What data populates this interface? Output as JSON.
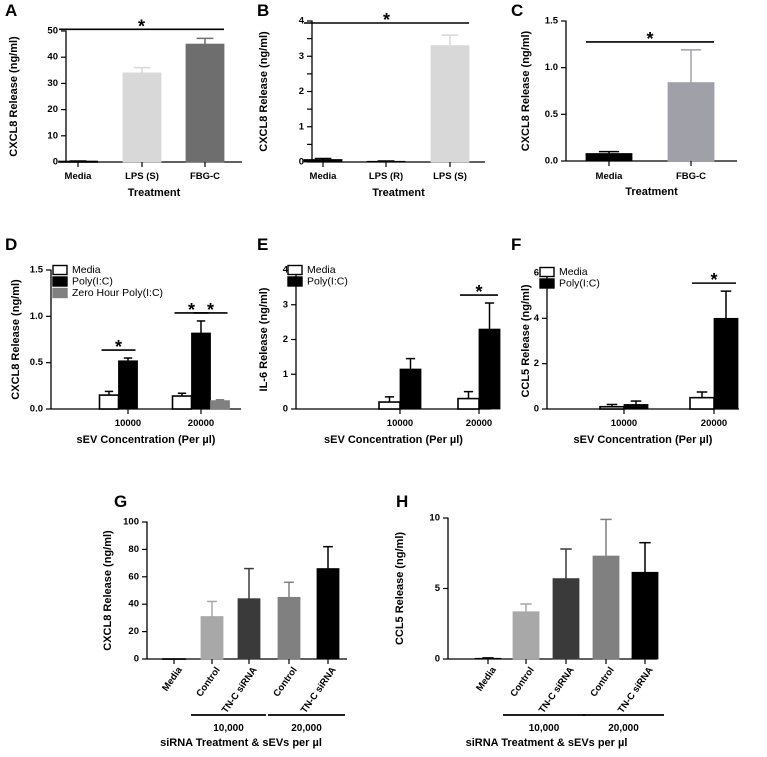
{
  "panels": [
    {
      "letter": "A",
      "chart_data": {
        "type": "bar",
        "categories": [
          "Media",
          "LPS (S)",
          "FBG-C"
        ],
        "values": [
          0.2,
          34,
          45
        ],
        "errors": [
          0.2,
          2,
          2.2
        ],
        "colors": [
          "#ffffff",
          "#d8d8d8",
          "#6e6e6e"
        ],
        "xlabel": "Treatment",
        "ylabel": "CXCL8 Release (ng/ml)",
        "ylim": [
          0,
          50
        ],
        "yticks": [
          0,
          10,
          20,
          30,
          40,
          50
        ],
        "ytick_labels": [
          "0",
          "10",
          "20",
          "30",
          "40",
          "50"
        ],
        "significance": [
          {
            "from": 0,
            "to": 2,
            "label": "*"
          }
        ]
      }
    },
    {
      "letter": "B",
      "chart_data": {
        "type": "bar",
        "categories": [
          "Media",
          "LPS (R)",
          "LPS (S)"
        ],
        "values": [
          0.07,
          0.02,
          3.3
        ],
        "errors": [
          0.03,
          0.01,
          0.3
        ],
        "colors": [
          "#000000",
          "#000000",
          "#d8d8d8"
        ],
        "xlabel": "Treatment",
        "ylabel": "CXCL8 Release (ng/ml)",
        "ylim": [
          0,
          4
        ],
        "yticks": [
          0,
          0.5,
          1,
          1.5,
          2,
          2.5,
          3,
          3.5,
          4
        ],
        "ytick_labels": [
          "0",
          "",
          "1",
          "",
          "2",
          "",
          "3",
          "",
          "4"
        ],
        "significance": [
          {
            "from": 0,
            "to": 2,
            "label": "*"
          }
        ]
      }
    },
    {
      "letter": "C",
      "chart_data": {
        "type": "bar",
        "categories": [
          "Media",
          "FBG-C"
        ],
        "values": [
          0.08,
          0.84
        ],
        "errors": [
          0.02,
          0.35
        ],
        "colors": [
          "#000000",
          "#a0a0a8"
        ],
        "xlabel": "Treatment",
        "ylabel": "CXCL8 Release (ng/ml)",
        "ylim": [
          0,
          1.5
        ],
        "yticks": [
          0,
          0.5,
          1,
          1.5
        ],
        "ytick_labels": [
          "0.0",
          "0.5",
          "1.0",
          "1.5"
        ],
        "significance": [
          {
            "from": 0,
            "to": 1,
            "label": "*"
          }
        ]
      }
    },
    {
      "letter": "D",
      "chart_data": {
        "type": "bar",
        "categories": [
          "10000",
          "20000"
        ],
        "series": [
          {
            "name": "Media",
            "values": [
              0.15,
              0.14
            ],
            "errors": [
              0.04,
              0.03
            ],
            "color": "#ffffff"
          },
          {
            "name": "Poly(I:C)",
            "values": [
              0.52,
              0.82
            ],
            "errors": [
              0.03,
              0.13
            ],
            "color": "#000000"
          },
          {
            "name": "Zero Hour Poly(I:C)",
            "values": [
              null,
              0.09
            ],
            "errors": [
              null,
              0.01
            ],
            "color": "#808080"
          }
        ],
        "xlabel": "sEV Concentration (Per µl)",
        "ylabel": "CXCL8 Release (ng/ml)",
        "ylim": [
          0,
          1.5
        ],
        "yticks": [
          0,
          0.5,
          1,
          1.5
        ],
        "ytick_labels": [
          "0.0",
          "0.5",
          "1.0",
          "1.5"
        ],
        "legend": "top-left",
        "significance": [
          {
            "group": 0,
            "from": 0,
            "to": 1,
            "label": "*"
          },
          {
            "group": 1,
            "from": 0,
            "to": 1,
            "label": "*"
          },
          {
            "group": 1,
            "from": 1,
            "to": 2,
            "label": "*"
          }
        ]
      }
    },
    {
      "letter": "E",
      "chart_data": {
        "type": "bar",
        "categories": [
          "10000",
          "20000"
        ],
        "series": [
          {
            "name": "Media",
            "values": [
              0.2,
              0.3
            ],
            "errors": [
              0.15,
              0.2
            ],
            "color": "#ffffff"
          },
          {
            "name": "Poly(I:C)",
            "values": [
              1.15,
              2.3
            ],
            "errors": [
              0.3,
              0.75
            ],
            "color": "#000000"
          }
        ],
        "xlabel": "sEV Concentration (Per µl)",
        "ylabel": "IL-6 Release (ng/ml)",
        "ylim": [
          0,
          4
        ],
        "yticks": [
          0,
          1,
          2,
          3,
          4
        ],
        "ytick_labels": [
          "0",
          "1",
          "2",
          "3",
          "4"
        ],
        "legend": "top-left",
        "significance": [
          {
            "group": 1,
            "from": 0,
            "to": 1,
            "label": "*"
          }
        ]
      }
    },
    {
      "letter": "F",
      "chart_data": {
        "type": "bar",
        "categories": [
          "10000",
          "20000"
        ],
        "series": [
          {
            "name": "Media",
            "values": [
              0.1,
              0.5
            ],
            "errors": [
              0.1,
              0.25
            ],
            "color": "#ffffff"
          },
          {
            "name": "Poly(I:C)",
            "values": [
              0.2,
              4.0
            ],
            "errors": [
              0.15,
              1.2
            ],
            "color": "#000000"
          }
        ],
        "xlabel": "sEV Concentration (Per µl)",
        "ylabel": "CCL5 Release (ng/ml)",
        "ylim": [
          0,
          6
        ],
        "yticks": [
          0,
          2,
          4,
          6
        ],
        "ytick_labels": [
          "0",
          "2",
          "4",
          "6"
        ],
        "legend": "top-left",
        "significance": [
          {
            "group": 1,
            "from": 0,
            "to": 1,
            "label": "*"
          }
        ]
      }
    },
    {
      "letter": "G",
      "chart_data": {
        "type": "bar",
        "categories": [
          "Media",
          "Control",
          "TN-C siRNA",
          "Control",
          "TN-C siRNA"
        ],
        "values": [
          0,
          31,
          44,
          45,
          66
        ],
        "errors": [
          0,
          11,
          22,
          11,
          16
        ],
        "colors": [
          "#ffffff",
          "#a8a8a8",
          "#3a3a3a",
          "#808080",
          "#000000"
        ],
        "xlabel": "siRNA Treatment & sEVs per µl",
        "ylabel": "CXCL8 Release (ng/ml)",
        "ylim": [
          0,
          100
        ],
        "yticks": [
          0,
          20,
          40,
          60,
          80,
          100
        ],
        "ytick_labels": [
          "0",
          "20",
          "40",
          "60",
          "80",
          "100"
        ],
        "groups": [
          {
            "label": "10,000",
            "from": 1,
            "to": 2
          },
          {
            "label": "20,000",
            "from": 3,
            "to": 4
          }
        ]
      }
    },
    {
      "letter": "H",
      "chart_data": {
        "type": "bar",
        "categories": [
          "Media",
          "Control",
          "TN-C siRNA",
          "Control",
          "TN-C siRNA"
        ],
        "values": [
          0.05,
          3.35,
          5.7,
          7.3,
          6.15
        ],
        "errors": [
          0.03,
          0.55,
          2.1,
          2.6,
          2.1
        ],
        "colors": [
          "#000000",
          "#a8a8a8",
          "#3a3a3a",
          "#808080",
          "#000000"
        ],
        "xlabel": "siRNA Treatment & sEVs per µl",
        "ylabel": "CCL5 Release (ng/ml)",
        "ylim": [
          0,
          10
        ],
        "yticks": [
          0,
          5,
          10
        ],
        "ytick_labels": [
          "0",
          "5",
          "10"
        ],
        "groups": [
          {
            "label": "10,000",
            "from": 1,
            "to": 2
          },
          {
            "label": "20,000",
            "from": 3,
            "to": 4
          }
        ]
      }
    }
  ]
}
